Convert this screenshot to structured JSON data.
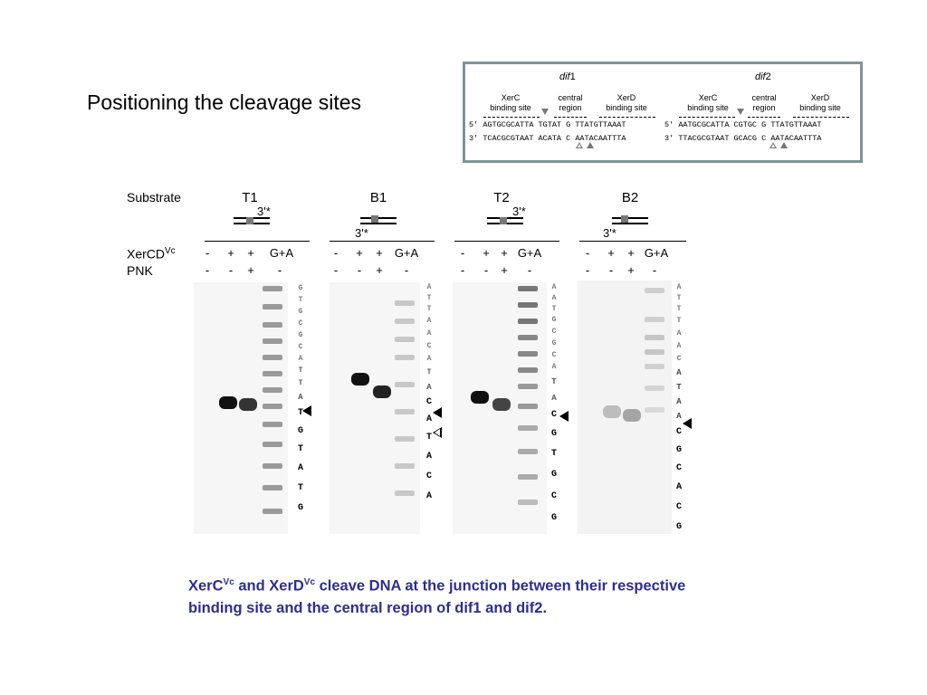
{
  "title": "Positioning the cleavage sites",
  "dif_box": {
    "dif1": {
      "heading_italic": "dif",
      "heading_num": "1",
      "labels": {
        "xerc": [
          "XerC",
          "binding site"
        ],
        "central": [
          "central",
          "region"
        ],
        "xerd": [
          "XerD",
          "binding site"
        ]
      },
      "top_prefix": "5'",
      "bottom_prefix": "3'",
      "top_seq": "AGTGCGCATTA TGTAT G TTATGTTAAAT",
      "bottom_seq": "TCACGCGTAAT ACATA C AATACAATTTA"
    },
    "dif2": {
      "heading_italic": "dif",
      "heading_num": "2",
      "labels": {
        "xerc": [
          "XerC",
          "binding site"
        ],
        "central": [
          "central",
          "region"
        ],
        "xerd": [
          "XerD",
          "binding site"
        ]
      },
      "top_prefix": "5'",
      "bottom_prefix": "3'",
      "top_seq": "AATGCGCATTA CGTGC G TTATGTTAAAT",
      "bottom_seq": "TTACGCGTAAT GCACG C AATACAATTTA"
    }
  },
  "gel": {
    "row_labels": {
      "substrate": "Substrate",
      "xercd_main": "XerCD",
      "xercd_sup": "Vc",
      "pnk": "PNK"
    },
    "panels": [
      {
        "name": "T1",
        "end_label": "3'*",
        "xercd": [
          "-",
          "+",
          "+",
          "G+A"
        ],
        "pnk": [
          "-",
          "-",
          "+",
          "-"
        ],
        "sequence": [
          "G",
          "T",
          "G",
          "C",
          "G",
          "C",
          "A",
          "T",
          "T",
          "A",
          "T",
          "G",
          "T",
          "A",
          "T",
          "G"
        ]
      },
      {
        "name": "B1",
        "end_label": "3'*",
        "xercd": [
          "-",
          "+",
          "+",
          "G+A"
        ],
        "pnk": [
          "-",
          "-",
          "+",
          "-"
        ],
        "sequence": [
          "A",
          "T",
          "T",
          "A",
          "A",
          "C",
          "A",
          "T",
          "A",
          "C",
          "A",
          "T",
          "A",
          "C",
          "A"
        ]
      },
      {
        "name": "T2",
        "end_label": "3'*",
        "xercd": [
          "-",
          "+",
          "+",
          "G+A"
        ],
        "pnk": [
          "-",
          "-",
          "+",
          "-"
        ],
        "sequence": [
          "A",
          "A",
          "T",
          "G",
          "C",
          "G",
          "C",
          "A",
          "T",
          "A",
          "C",
          "G",
          "T",
          "G",
          "C",
          "G"
        ]
      },
      {
        "name": "B2",
        "end_label": "3'*",
        "xercd": [
          "-",
          "+",
          "+",
          "G+A"
        ],
        "pnk": [
          "-",
          "-",
          "+",
          "-"
        ],
        "sequence": [
          "A",
          "T",
          "T",
          "T",
          "A",
          "A",
          "C",
          "A",
          "T",
          "A",
          "A",
          "C",
          "G",
          "C",
          "A",
          "C",
          "G"
        ]
      }
    ]
  },
  "caption": {
    "part1": "XerC",
    "sup1": "Vc",
    "part2": " and XerD",
    "sup2": "Vc",
    "part3": " cleave DNA at the junction between their respective binding site and the central region of dif1 and dif2."
  }
}
